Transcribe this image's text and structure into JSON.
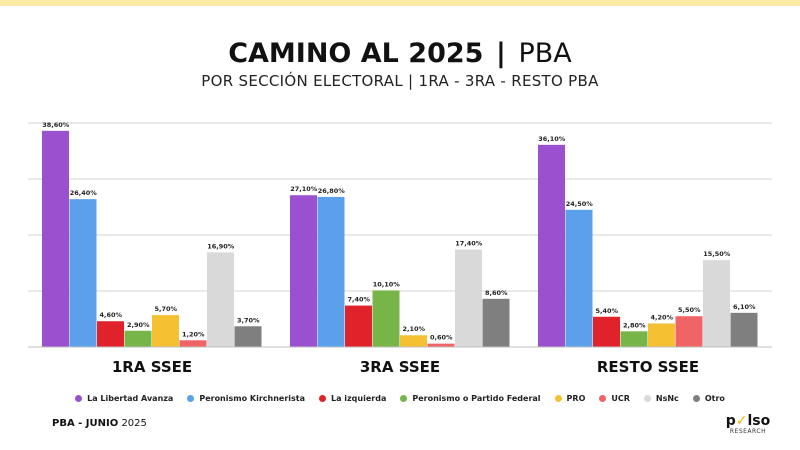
{
  "header": {
    "title_main": "CAMINO AL 2025",
    "title_sep": "|",
    "title_sub": "PBA",
    "subtitle": "POR SECCIÓN ELECTORAL | 1RA - 3RA - RESTO PBA"
  },
  "colors": {
    "top_bar": "#fce9a6",
    "La Libertad Avanza": "#9b51cf",
    "Peronismo Kirchnerista": "#5aa0ea",
    "La izquierda": "#e0222a",
    "Peronismo o Partido Federal": "#78b548",
    "PRO": "#f6c033",
    "UCR": "#f06366",
    "NsNc": "#d9d9d9",
    "Otro": "#7f7f7f"
  },
  "chart_data": {
    "type": "bar",
    "categories": [
      "1RA SSEE",
      "3RA SSEE",
      "RESTO SSEE"
    ],
    "series": [
      {
        "name": "La Libertad Avanza",
        "values": [
          38.6,
          27.1,
          36.1
        ],
        "labels": [
          "38,60%",
          "27,10%",
          "36,10%"
        ]
      },
      {
        "name": "Peronismo Kirchnerista",
        "values": [
          26.4,
          26.8,
          24.5
        ],
        "labels": [
          "26,40%",
          "26,80%",
          "24,50%"
        ]
      },
      {
        "name": "La izquierda",
        "values": [
          4.6,
          7.4,
          5.4
        ],
        "labels": [
          "4,60%",
          "7,40%",
          "5,40%"
        ]
      },
      {
        "name": "Peronismo o Partido Federal",
        "values": [
          2.9,
          10.1,
          2.8
        ],
        "labels": [
          "2,90%",
          "10,10%",
          "2,80%"
        ]
      },
      {
        "name": "PRO",
        "values": [
          5.7,
          2.1,
          4.2
        ],
        "labels": [
          "5,70%",
          "2,10%",
          "4,20%"
        ]
      },
      {
        "name": "UCR",
        "values": [
          1.2,
          0.6,
          5.5
        ],
        "labels": [
          "1,20%",
          "0,60%",
          "5,50%"
        ]
      },
      {
        "name": "NsNc",
        "values": [
          16.9,
          17.4,
          15.5
        ],
        "labels": [
          "16,90%",
          "17,40%",
          "15,50%"
        ]
      },
      {
        "name": "Otro",
        "values": [
          3.7,
          8.6,
          6.1
        ],
        "labels": [
          "3,70%",
          "8,60%",
          "6,10%"
        ]
      }
    ],
    "ylim": [
      0,
      40
    ],
    "grid": true,
    "legend": "bottom"
  },
  "footer": {
    "left_bold": "PBA -  JUNIO",
    "left_year": "2025",
    "logo_text_a": "p",
    "logo_mark": "✓",
    "logo_text_b": "lso",
    "logo_sub": "RESEARCH"
  }
}
